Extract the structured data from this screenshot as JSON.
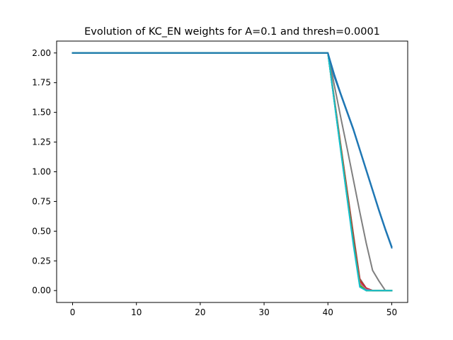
{
  "chart_data": {
    "type": "line",
    "title": "Evolution of KC_EN weights for A=0.1 and thresh=0.0001",
    "xlabel": "",
    "ylabel": "",
    "xlim": [
      -2.5,
      52.5
    ],
    "ylim": [
      -0.1,
      2.1
    ],
    "grid": false,
    "legend": "none",
    "x_ticks": [
      0,
      10,
      20,
      30,
      40,
      50
    ],
    "x_tick_labels": [
      "0",
      "10",
      "20",
      "30",
      "40",
      "50"
    ],
    "y_ticks": [
      0.0,
      0.25,
      0.5,
      0.75,
      1.0,
      1.25,
      1.5,
      1.75,
      2.0
    ],
    "y_tick_labels": [
      "0.00",
      "0.25",
      "0.50",
      "0.75",
      "1.00",
      "1.25",
      "1.50",
      "1.75",
      "2.00"
    ],
    "series": [
      {
        "color": "#1f77b4",
        "x": [
          0,
          40,
          41,
          42,
          43,
          44,
          45,
          46,
          47,
          48,
          49,
          50
        ],
        "y": [
          2.0,
          2.0,
          1.82,
          1.66,
          1.51,
          1.36,
          1.19,
          1.02,
          0.85,
          0.68,
          0.52,
          0.37
        ]
      },
      {
        "color": "#7f7f7f",
        "x": [
          0,
          40,
          41,
          42,
          43,
          44,
          45,
          46,
          47,
          48,
          49,
          50
        ],
        "y": [
          2.0,
          2.0,
          1.73,
          1.46,
          1.2,
          0.93,
          0.66,
          0.4,
          0.17,
          0.08,
          0.0,
          0.0
        ]
      },
      {
        "color": "#8c564b",
        "x": [
          0,
          40,
          41,
          42,
          43,
          44,
          45,
          46,
          47,
          48,
          49,
          50
        ],
        "y": [
          2.0,
          2.0,
          1.62,
          1.23,
          0.85,
          0.47,
          0.1,
          0.02,
          0.0,
          0.0,
          0.0,
          0.0
        ]
      },
      {
        "color": "#d62728",
        "x": [
          0,
          40,
          41,
          42,
          43,
          44,
          45,
          46,
          47,
          48,
          49,
          50
        ],
        "y": [
          2.0,
          2.0,
          1.6,
          1.21,
          0.82,
          0.43,
          0.08,
          0.02,
          0.0,
          0.0,
          0.0,
          0.0
        ]
      },
      {
        "color": "#9467bd",
        "x": [
          0,
          40,
          41,
          42,
          43,
          44,
          45,
          46,
          47,
          48,
          49,
          50
        ],
        "y": [
          2.0,
          2.0,
          1.6,
          1.2,
          0.8,
          0.41,
          0.06,
          0.01,
          0.0,
          0.0,
          0.0,
          0.0
        ]
      },
      {
        "color": "#bcbd22",
        "x": [
          0,
          40,
          41,
          42,
          43,
          44,
          45,
          46,
          47,
          48,
          49,
          50
        ],
        "y": [
          2.0,
          2.0,
          1.6,
          1.2,
          0.8,
          0.4,
          0.05,
          0.0,
          0.0,
          0.0,
          0.0,
          0.0
        ]
      },
      {
        "color": "#2ca02c",
        "x": [
          0,
          40,
          41,
          42,
          43,
          44,
          45,
          46,
          47,
          48,
          49,
          50
        ],
        "y": [
          2.0,
          2.0,
          1.59,
          1.19,
          0.79,
          0.4,
          0.04,
          0.0,
          0.0,
          0.0,
          0.0,
          0.0
        ]
      },
      {
        "color": "#17becf",
        "x": [
          0,
          40,
          41,
          42,
          43,
          44,
          45,
          46,
          47,
          48,
          49,
          50
        ],
        "y": [
          2.0,
          2.0,
          1.59,
          1.18,
          0.78,
          0.38,
          0.03,
          0.0,
          0.0,
          0.0,
          0.0,
          0.0
        ]
      },
      {
        "color": "#1f77b4",
        "x": [
          0,
          40,
          41,
          42,
          43,
          44,
          45,
          46,
          47,
          48,
          49,
          50
        ],
        "y": [
          2.0,
          2.0,
          1.8,
          1.65,
          1.5,
          1.35,
          1.18,
          1.01,
          0.84,
          0.67,
          0.51,
          0.36
        ]
      }
    ]
  }
}
